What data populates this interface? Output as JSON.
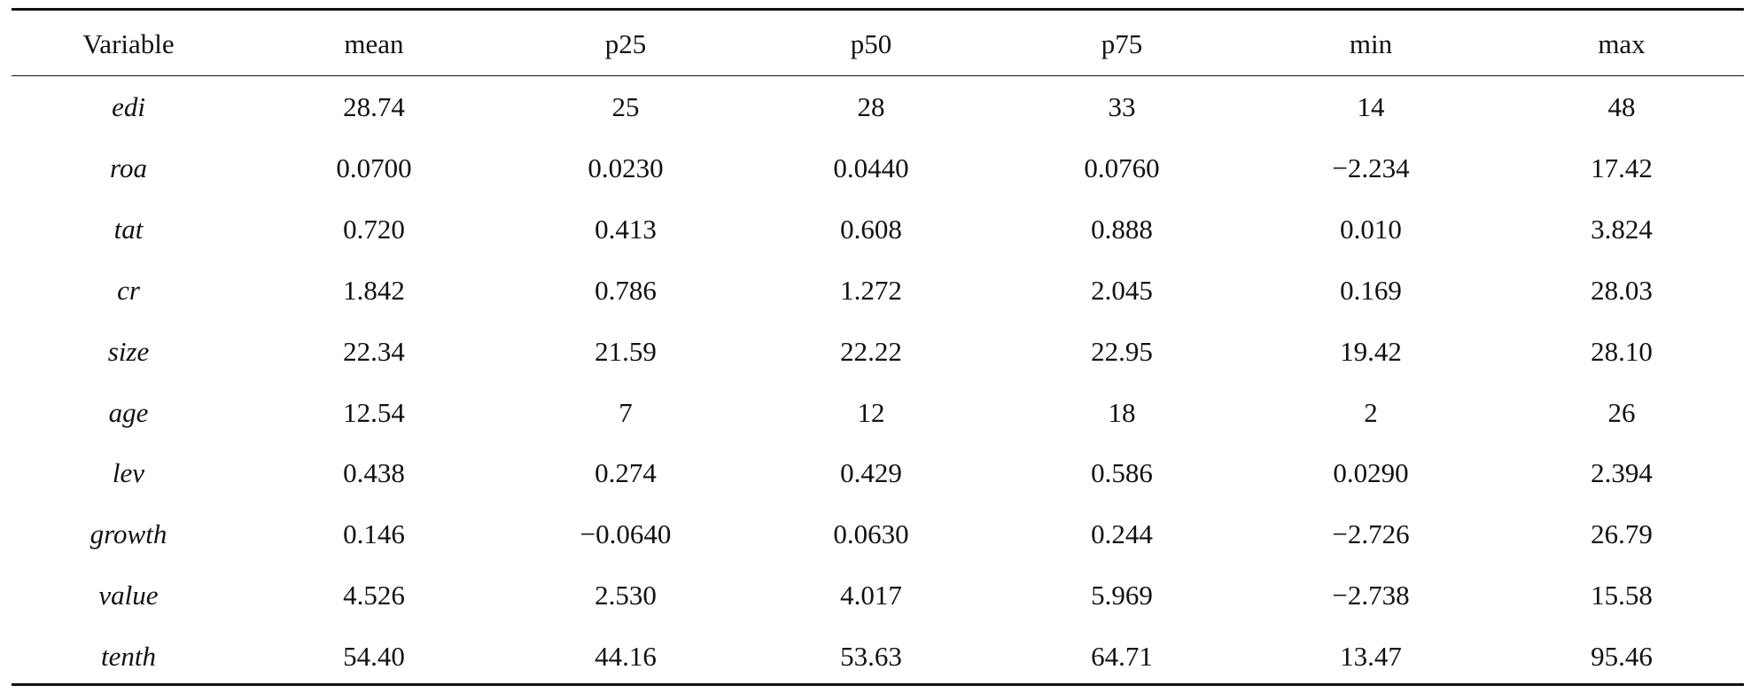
{
  "table": {
    "header": [
      "Variable",
      "mean",
      "p25",
      "p50",
      "p75",
      "min",
      "max"
    ],
    "rows": [
      [
        "edi",
        "28.74",
        "25",
        "28",
        "33",
        "14",
        "48"
      ],
      [
        "roa",
        "0.0700",
        "0.0230",
        "0.0440",
        "0.0760",
        "−2.234",
        "17.42"
      ],
      [
        "tat",
        "0.720",
        "0.413",
        "0.608",
        "0.888",
        "0.010",
        "3.824"
      ],
      [
        "cr",
        "1.842",
        "0.786",
        "1.272",
        "2.045",
        "0.169",
        "28.03"
      ],
      [
        "size",
        "22.34",
        "21.59",
        "22.22",
        "22.95",
        "19.42",
        "28.10"
      ],
      [
        "age",
        "12.54",
        "7",
        "12",
        "18",
        "2",
        "26"
      ],
      [
        "lev",
        "0.438",
        "0.274",
        "0.429",
        "0.586",
        "0.0290",
        "2.394"
      ],
      [
        "growth",
        "0.146",
        "−0.0640",
        "0.0630",
        "0.244",
        "−2.726",
        "26.79"
      ],
      [
        "value",
        "4.526",
        "2.530",
        "4.017",
        "5.969",
        "−2.738",
        "15.58"
      ],
      [
        "tenth",
        "54.40",
        "44.16",
        "53.63",
        "64.71",
        "13.47",
        "95.46"
      ]
    ]
  }
}
